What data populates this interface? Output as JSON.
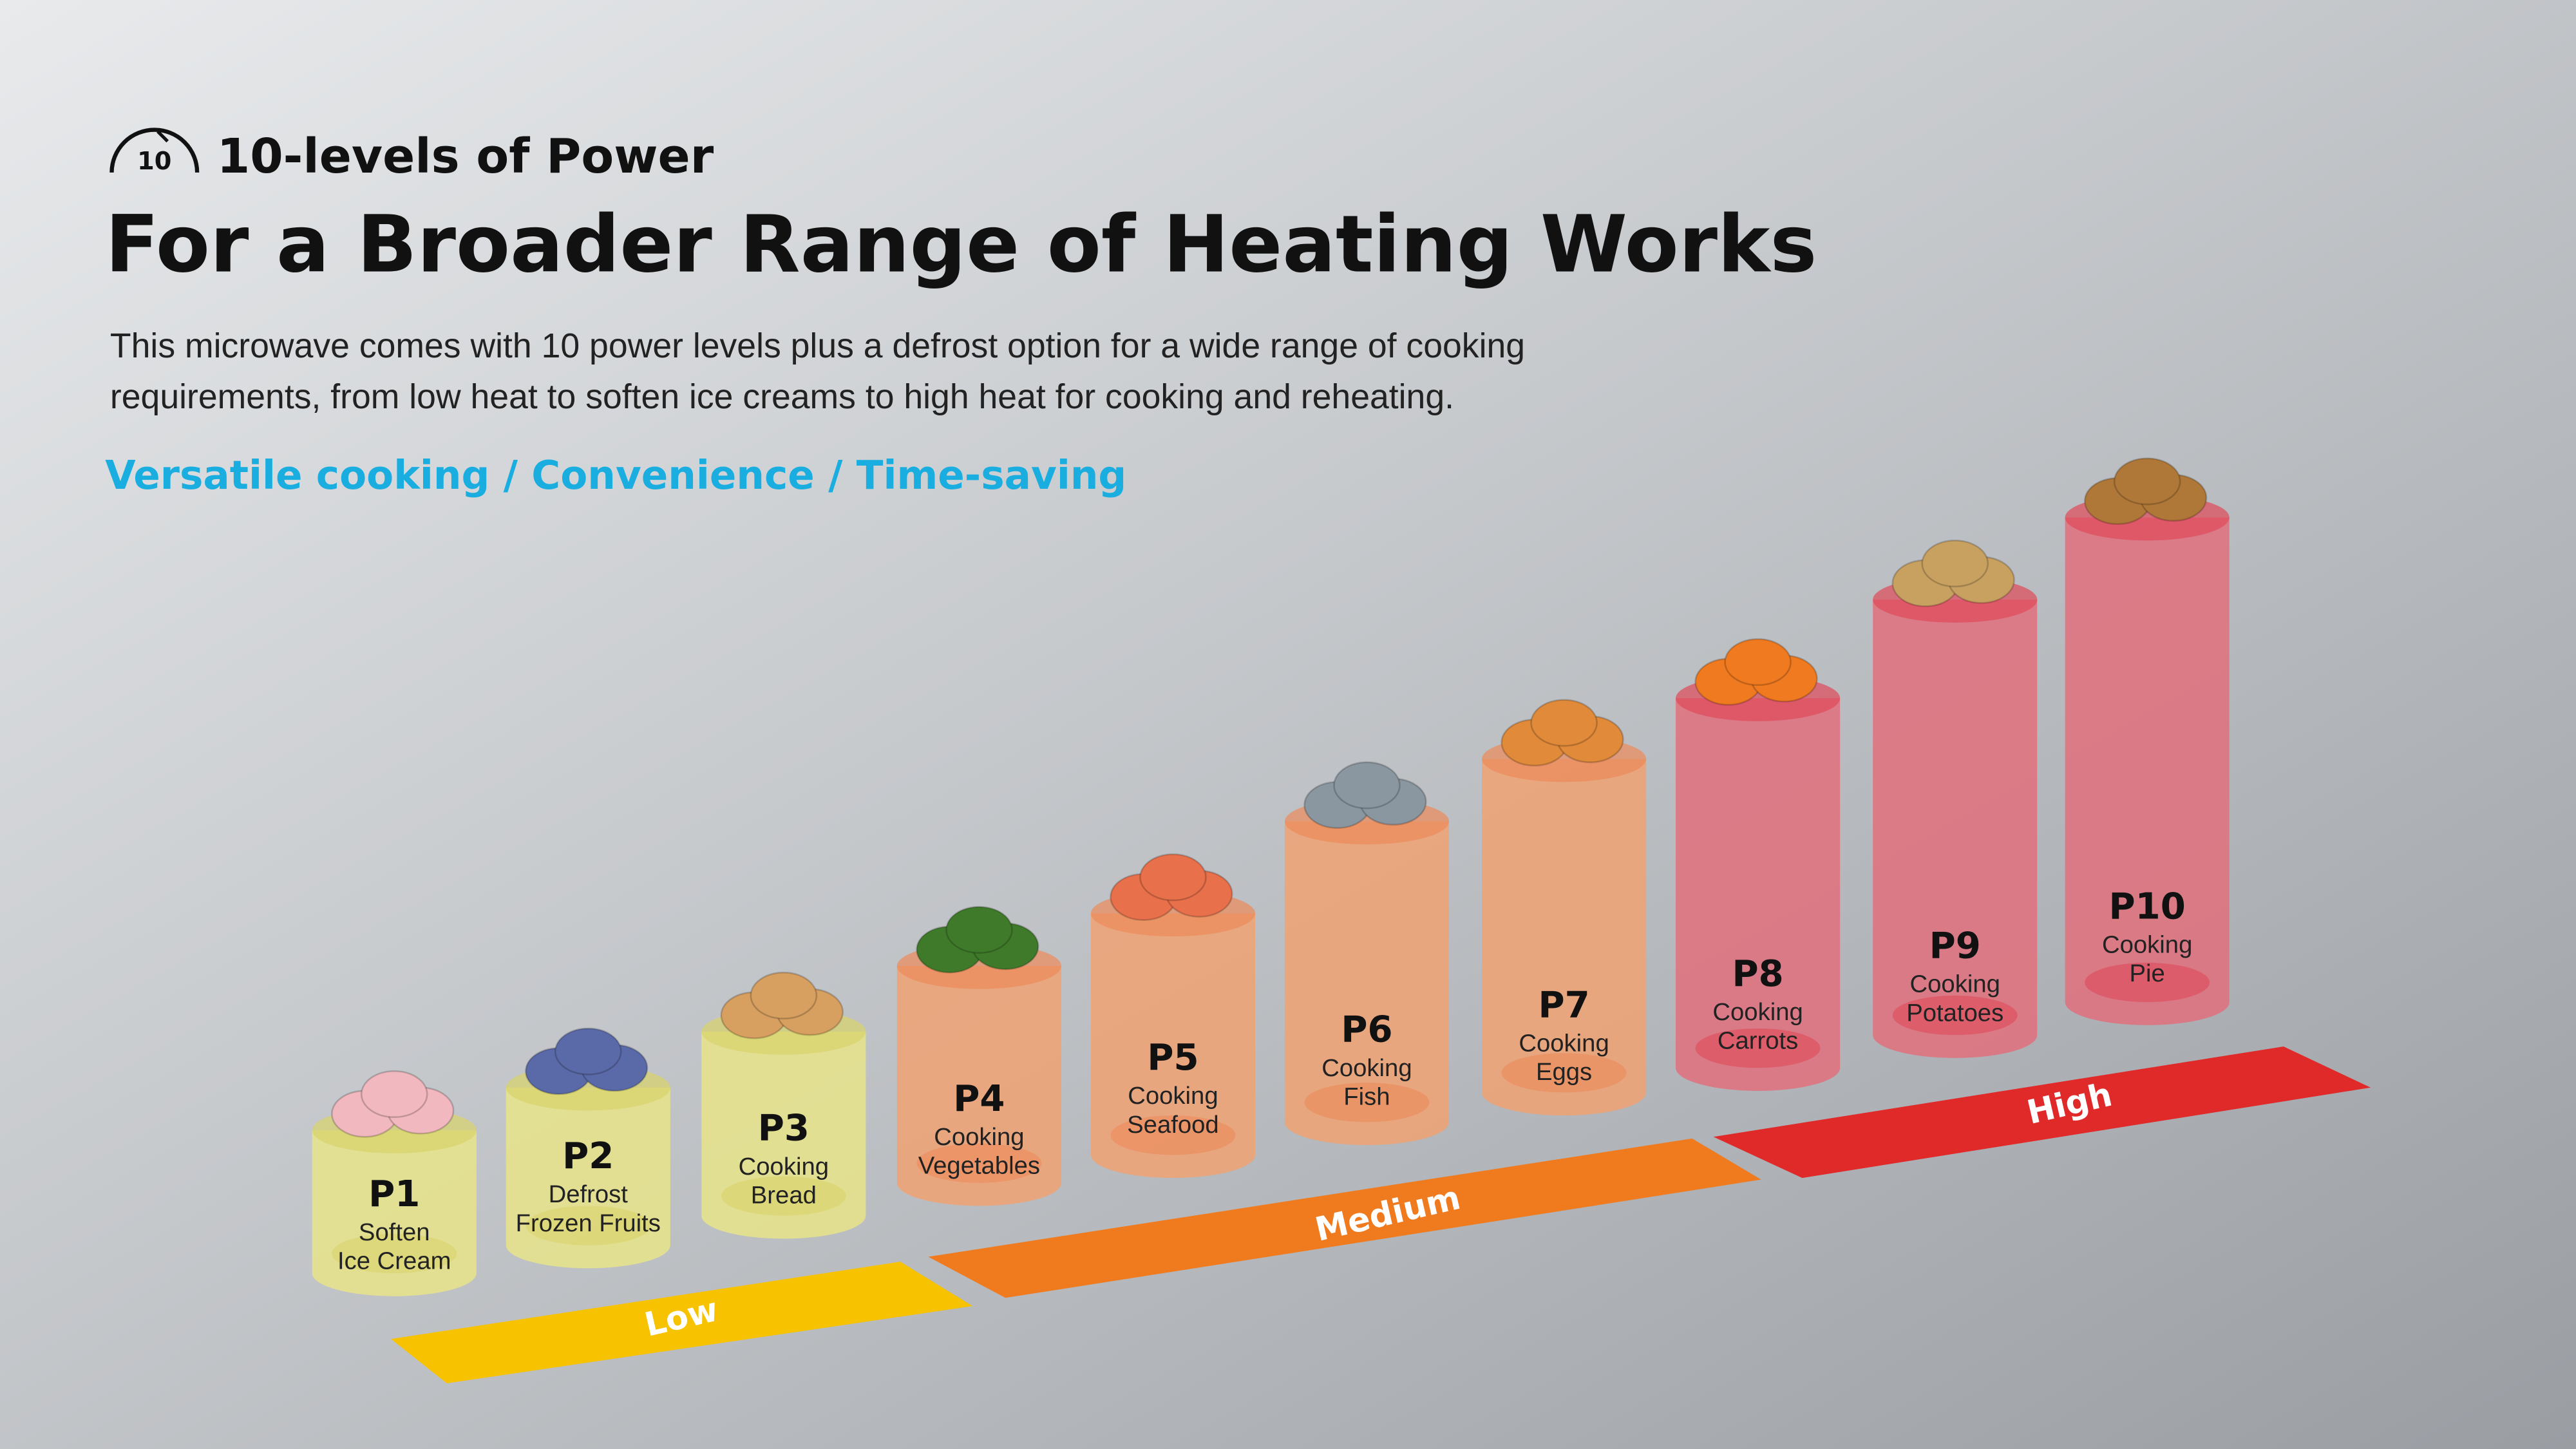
{
  "header": {
    "icon_label": "10",
    "eyebrow": "10-levels of Power",
    "title": "For a Broader Range of Heating Works",
    "description": [
      "This microwave comes with 10 power levels plus a defrost option for a wide range of cooking",
      "requirements, from low heat to soften ice creams to high heat for cooking and reheating."
    ],
    "tagline": "Versatile cooking / Convenience / Time-saving"
  },
  "levels": [
    {
      "code": "P1",
      "label": [
        "Soften",
        "Ice Cream"
      ]
    },
    {
      "code": "P2",
      "label": [
        "Defrost",
        "Frozen Fruits"
      ]
    },
    {
      "code": "P3",
      "label": [
        "Cooking",
        "Bread"
      ]
    },
    {
      "code": "P4",
      "label": [
        "Cooking",
        "Vegetables"
      ]
    },
    {
      "code": "P5",
      "label": [
        "Cooking",
        "Seafood"
      ]
    },
    {
      "code": "P6",
      "label": [
        "Cooking",
        "Fish"
      ]
    },
    {
      "code": "P7",
      "label": [
        "Cooking",
        "Eggs"
      ]
    },
    {
      "code": "P8",
      "label": [
        "Cooking",
        "Carrots"
      ]
    },
    {
      "code": "P9",
      "label": [
        "Cooking",
        "Potatoes"
      ]
    },
    {
      "code": "P10",
      "label": [
        "Cooking",
        "Pie"
      ]
    }
  ],
  "bands": [
    "Low",
    "Medium",
    "High"
  ]
}
